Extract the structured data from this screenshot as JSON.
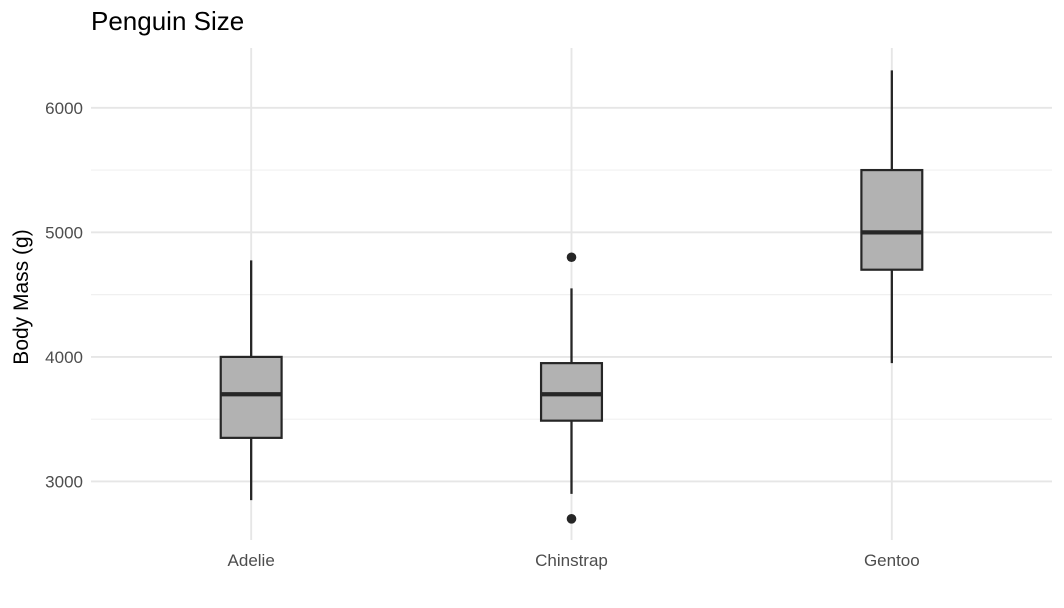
{
  "chart_data": {
    "type": "boxplot",
    "title": "Penguin Size",
    "xlabel": "",
    "ylabel": "Body Mass (g)",
    "ylim": [
      2530,
      6480
    ],
    "y_ticks": [
      3000,
      4000,
      5000,
      6000
    ],
    "grid": true,
    "categories": [
      "Adelie",
      "Chinstrap",
      "Gentoo"
    ],
    "boxes": [
      {
        "category": "Adelie",
        "lower_whisker": 2850,
        "q1": 3350,
        "median": 3700,
        "q3": 4000,
        "upper_whisker": 4775,
        "outliers": []
      },
      {
        "category": "Chinstrap",
        "lower_whisker": 2900,
        "q1": 3488,
        "median": 3700,
        "q3": 3950,
        "upper_whisker": 4550,
        "outliers": [
          2700,
          4800
        ]
      },
      {
        "category": "Gentoo",
        "lower_whisker": 3950,
        "q1": 4700,
        "median": 5000,
        "q3": 5500,
        "upper_whisker": 6300,
        "outliers": []
      }
    ],
    "colors": {
      "box_fill": "#b2b2b2",
      "box_stroke": "#262626",
      "grid": "#e6e6e6"
    }
  }
}
